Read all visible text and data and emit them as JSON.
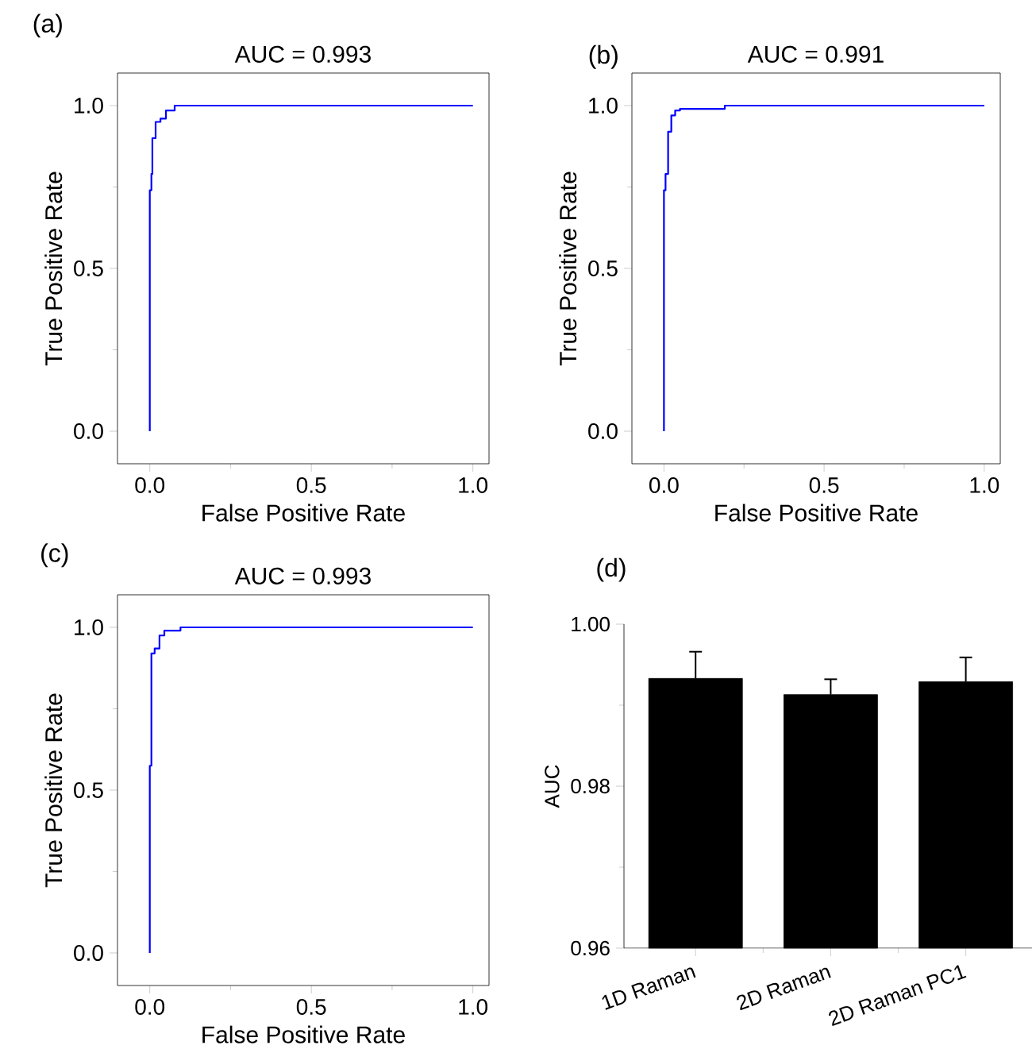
{
  "chart_data": [
    {
      "type": "line",
      "title": "AUC = 0.993",
      "xlabel": "False Positive Rate",
      "ylabel": "True Positive Rate",
      "annotations": [
        "(a)"
      ],
      "xlim": [
        -0.1,
        1.05
      ],
      "ylim": [
        -0.1,
        1.1
      ],
      "xticks": [
        {
          "value": 0,
          "label": "0.0"
        },
        {
          "value": 0.25,
          "label": null
        },
        {
          "value": 0.5,
          "label": "0.5"
        },
        {
          "value": 0.75,
          "label": null
        },
        {
          "value": 1,
          "label": "1.0"
        }
      ],
      "yticks": [
        {
          "value": 0,
          "label": "0.0"
        },
        {
          "value": 0.25,
          "label": null
        },
        {
          "value": 0.5,
          "label": "0.5"
        },
        {
          "value": 0.75,
          "label": null
        },
        {
          "value": 1,
          "label": "1.0"
        }
      ],
      "series": [
        {
          "color": "#0000ff",
          "x": [
            0,
            0,
            0.005,
            0.005,
            0.008,
            0.008,
            0.018,
            0.018,
            0.033,
            0.033,
            0.05,
            0.05,
            0.077,
            0.077,
            1
          ],
          "values": [
            0,
            0.74,
            0.74,
            0.79,
            0.79,
            0.9,
            0.9,
            0.95,
            0.95,
            0.96,
            0.96,
            0.985,
            0.985,
            1,
            1
          ]
        }
      ]
    },
    {
      "type": "line",
      "title": "AUC = 0.991",
      "xlabel": "False Positive Rate",
      "ylabel": "True Positive Rate",
      "annotations": [
        "(b)"
      ],
      "xlim": [
        -0.1,
        1.05
      ],
      "ylim": [
        -0.1,
        1.1
      ],
      "xticks": [
        {
          "value": 0,
          "label": "0.0"
        },
        {
          "value": 0.25,
          "label": null
        },
        {
          "value": 0.5,
          "label": "0.5"
        },
        {
          "value": 0.75,
          "label": null
        },
        {
          "value": 1,
          "label": "1.0"
        }
      ],
      "yticks": [
        {
          "value": 0,
          "label": "0.0"
        },
        {
          "value": 0.25,
          "label": null
        },
        {
          "value": 0.5,
          "label": "0.5"
        },
        {
          "value": 0.75,
          "label": null
        },
        {
          "value": 1,
          "label": "1.0"
        }
      ],
      "series": [
        {
          "color": "#0000ff",
          "x": [
            0,
            0,
            0.005,
            0.005,
            0.013,
            0.013,
            0.023,
            0.023,
            0.035,
            0.035,
            0.05,
            0.05,
            0.19,
            0.19,
            1
          ],
          "values": [
            0,
            0.74,
            0.74,
            0.79,
            0.79,
            0.92,
            0.92,
            0.97,
            0.97,
            0.985,
            0.985,
            0.99,
            0.99,
            1,
            1
          ]
        }
      ]
    },
    {
      "type": "line",
      "title": "AUC = 0.993",
      "xlabel": "False Positive Rate",
      "ylabel": "True Positive Rate",
      "annotations": [
        "(c)"
      ],
      "xlim": [
        -0.1,
        1.05
      ],
      "ylim": [
        -0.1,
        1.1
      ],
      "xticks": [
        {
          "value": 0,
          "label": "0.0"
        },
        {
          "value": 0.25,
          "label": null
        },
        {
          "value": 0.5,
          "label": "0.5"
        },
        {
          "value": 0.75,
          "label": null
        },
        {
          "value": 1,
          "label": "1.0"
        }
      ],
      "yticks": [
        {
          "value": 0,
          "label": "0.0"
        },
        {
          "value": 0.25,
          "label": null
        },
        {
          "value": 0.5,
          "label": "0.5"
        },
        {
          "value": 0.75,
          "label": null
        },
        {
          "value": 1,
          "label": "1.0"
        }
      ],
      "series": [
        {
          "color": "#0000ff",
          "x": [
            0,
            0,
            0.005,
            0.005,
            0.015,
            0.015,
            0.03,
            0.03,
            0.045,
            0.045,
            0.095,
            0.095,
            1
          ],
          "values": [
            0,
            0.575,
            0.575,
            0.92,
            0.92,
            0.935,
            0.935,
            0.975,
            0.975,
            0.99,
            0.99,
            1,
            1
          ]
        }
      ]
    },
    {
      "type": "bar",
      "ylabel": "AUC",
      "annotations": [
        "(d)"
      ],
      "categories": [
        "1D Raman",
        "2D Raman",
        "2D Raman PC1"
      ],
      "color": "#000000",
      "values": [
        0.9933,
        0.9913,
        0.9929
      ],
      "errors": [
        [
          0.9933,
          0.9966
        ],
        [
          0.9913,
          0.9932
        ],
        [
          0.9929,
          0.9959
        ]
      ],
      "ylim": [
        0.96,
        1.0
      ],
      "yticks": [
        {
          "value": 0.96,
          "label": "0.96"
        },
        {
          "value": 0.97,
          "label": null
        },
        {
          "value": 0.98,
          "label": "0.98"
        },
        {
          "value": 0.99,
          "label": null
        },
        {
          "value": 1.0,
          "label": "1.00"
        }
      ]
    }
  ]
}
